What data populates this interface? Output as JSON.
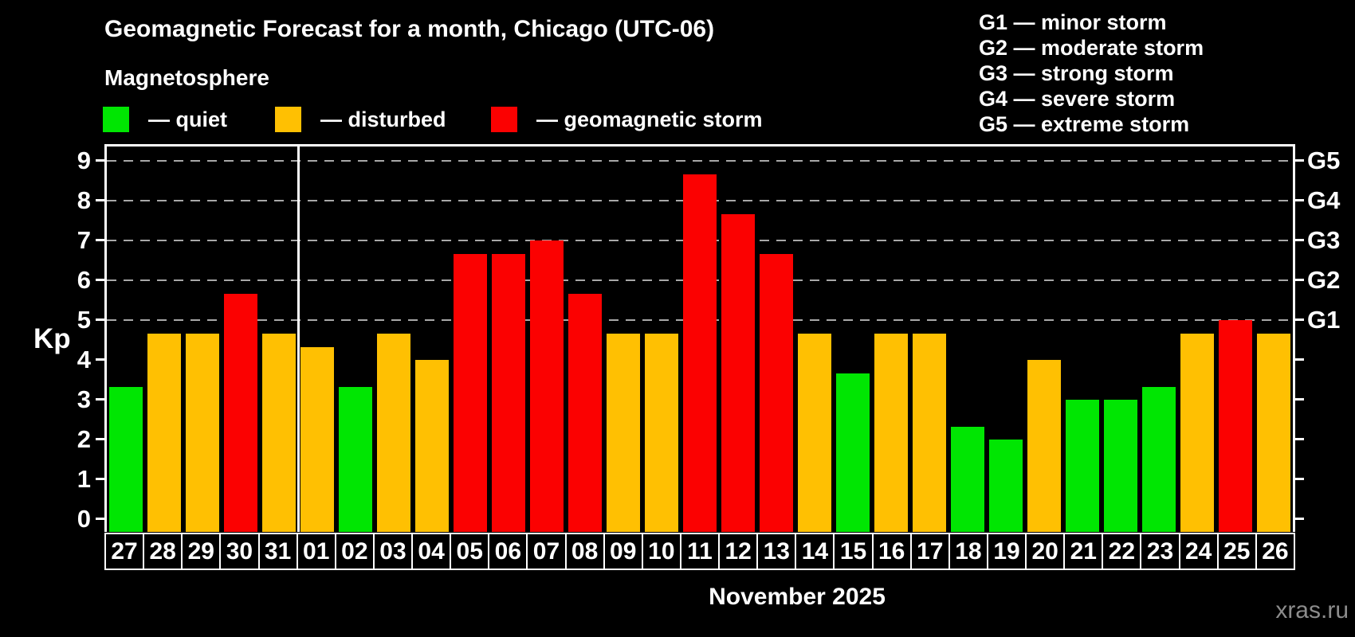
{
  "title": "Geomagnetic Forecast for a month, Chicago (UTC-06)",
  "subtitle": "Magnetosphere",
  "colors": {
    "quiet": "#00e602",
    "disturbed": "#ffc002",
    "storm": "#fb0101",
    "background": "#000000",
    "axis": "#ffffff",
    "gridline": "#a8a8a8",
    "watermark": "#8c8c8c"
  },
  "legend": [
    {
      "key": "quiet",
      "label": "— quiet"
    },
    {
      "key": "disturbed",
      "label": "— disturbed"
    },
    {
      "key": "storm",
      "label": "— geomagnetic storm"
    }
  ],
  "g_legend": [
    "G1 — minor storm",
    "G2 — moderate storm",
    "G3 — strong storm",
    "G4 — severe storm",
    "G5 — extreme storm"
  ],
  "axis": {
    "y_label": "Kp",
    "y_ticks": [
      0,
      1,
      2,
      3,
      4,
      5,
      6,
      7,
      8,
      9
    ]
  },
  "footer": {
    "month_label": "November 2025",
    "watermark": "xras.ru"
  },
  "chart_data": {
    "type": "bar",
    "title": "Geomagnetic Forecast for a month, Chicago (UTC-06)",
    "xlabel": "November 2025",
    "ylabel": "Kp",
    "ylim": [
      0,
      9
    ],
    "grid": "horizontal dashed lines at Kp 5-9 (G1-G5 storm levels)",
    "legend_position": "top",
    "categories": [
      "27",
      "28",
      "29",
      "30",
      "31",
      "01",
      "02",
      "03",
      "04",
      "05",
      "06",
      "07",
      "08",
      "09",
      "10",
      "11",
      "12",
      "13",
      "14",
      "15",
      "16",
      "17",
      "18",
      "19",
      "20",
      "21",
      "22",
      "23",
      "24",
      "25",
      "26"
    ],
    "values": [
      3.33,
      4.67,
      4.67,
      5.67,
      4.67,
      4.33,
      3.33,
      4.67,
      4.0,
      6.67,
      6.67,
      7.0,
      5.67,
      4.67,
      4.67,
      8.67,
      7.67,
      6.67,
      4.67,
      3.67,
      4.67,
      4.67,
      2.33,
      2.0,
      4.0,
      3.0,
      3.0,
      3.33,
      4.67,
      5.0,
      4.67
    ],
    "statuses": [
      "quiet",
      "disturbed",
      "disturbed",
      "storm",
      "disturbed",
      "disturbed",
      "quiet",
      "disturbed",
      "disturbed",
      "storm",
      "storm",
      "storm",
      "storm",
      "disturbed",
      "disturbed",
      "storm",
      "storm",
      "storm",
      "disturbed",
      "quiet",
      "disturbed",
      "disturbed",
      "quiet",
      "quiet",
      "disturbed",
      "quiet",
      "quiet",
      "quiet",
      "disturbed",
      "storm",
      "disturbed"
    ],
    "month_separator_after_index": 4,
    "right_axis": {
      "ticks": [
        5,
        6,
        7,
        8,
        9
      ],
      "labels": [
        "G1",
        "G2",
        "G3",
        "G4",
        "G5"
      ]
    }
  }
}
